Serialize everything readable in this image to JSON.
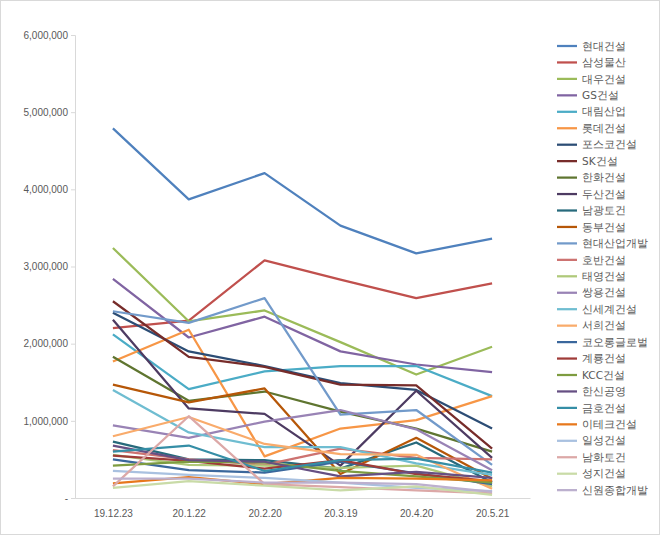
{
  "chart_data": {
    "type": "line",
    "categories": [
      "19.12.23",
      "20.1.22",
      "20.2.20",
      "20.3.19",
      "20.4.20",
      "20.5.21"
    ],
    "ylim": [
      0,
      6000000
    ],
    "yticks": [
      {
        "value": 0,
        "label": "-"
      },
      {
        "value": 1000000,
        "label": "1,000,000"
      },
      {
        "value": 2000000,
        "label": "2,000,000"
      },
      {
        "value": 3000000,
        "label": "3,000,000"
      },
      {
        "value": 4000000,
        "label": "4,000,000"
      },
      {
        "value": 5000000,
        "label": "5,000,000"
      },
      {
        "value": 6000000,
        "label": "6,000,000"
      }
    ],
    "grid": false,
    "legend": "right",
    "series": [
      {
        "name": "현대건설",
        "color": "#4f81bd",
        "values": [
          4790000,
          3870000,
          4210000,
          3530000,
          3170000,
          3360000
        ]
      },
      {
        "name": "삼성물산",
        "color": "#c0504d",
        "values": [
          2200000,
          2300000,
          3080000,
          2830000,
          2590000,
          2780000
        ]
      },
      {
        "name": "대우건설",
        "color": "#9bbb59",
        "values": [
          3240000,
          2290000,
          2430000,
          2020000,
          1600000,
          1960000
        ]
      },
      {
        "name": "GS건설",
        "color": "#8064a2",
        "values": [
          2840000,
          2080000,
          2350000,
          1900000,
          1730000,
          1630000
        ]
      },
      {
        "name": "대림산업",
        "color": "#4bacc6",
        "values": [
          2120000,
          1410000,
          1640000,
          1710000,
          1710000,
          1320000
        ]
      },
      {
        "name": "롯데건설",
        "color": "#f79646",
        "values": [
          1770000,
          2180000,
          540000,
          900000,
          1010000,
          1320000
        ]
      },
      {
        "name": "포스코건설",
        "color": "#2c4d75",
        "values": [
          2400000,
          1900000,
          1710000,
          1490000,
          1400000,
          900000
        ]
      },
      {
        "name": "SK건설",
        "color": "#772c2a",
        "values": [
          2550000,
          1830000,
          1700000,
          1470000,
          1460000,
          640000
        ]
      },
      {
        "name": "한화건설",
        "color": "#5f7530",
        "values": [
          1830000,
          1260000,
          1380000,
          1120000,
          900000,
          600000
        ]
      },
      {
        "name": "두산건설",
        "color": "#4d3b62",
        "values": [
          2310000,
          1160000,
          1090000,
          420000,
          1390000,
          520000
        ]
      },
      {
        "name": "남광토건",
        "color": "#276a7c",
        "values": [
          730000,
          500000,
          490000,
          380000,
          720000,
          200000
        ]
      },
      {
        "name": "동부건설",
        "color": "#b65708",
        "values": [
          1470000,
          1240000,
          1420000,
          310000,
          780000,
          250000
        ]
      },
      {
        "name": "현대산업개발",
        "color": "#729aca",
        "values": [
          2420000,
          2270000,
          2590000,
          1080000,
          1140000,
          430000
        ]
      },
      {
        "name": "호반건설",
        "color": "#cd7371",
        "values": [
          620000,
          500000,
          430000,
          640000,
          520000,
          500000
        ]
      },
      {
        "name": "태영건설",
        "color": "#afc97a",
        "values": [
          560000,
          430000,
          420000,
          390000,
          420000,
          150000
        ]
      },
      {
        "name": "쌍용건설",
        "color": "#9983b5",
        "values": [
          940000,
          780000,
          990000,
          1140000,
          890000,
          360000
        ]
      },
      {
        "name": "신세계건설",
        "color": "#6fbdd1",
        "values": [
          1400000,
          850000,
          660000,
          660000,
          450000,
          300000
        ]
      },
      {
        "name": "서희건설",
        "color": "#f9ab6b",
        "values": [
          800000,
          1050000,
          700000,
          570000,
          560000,
          120000
        ]
      },
      {
        "name": "코오롱글로벌",
        "color": "#3a679c",
        "values": [
          500000,
          360000,
          330000,
          470000,
          320000,
          180000
        ]
      },
      {
        "name": "계룡건설",
        "color": "#9f3b38",
        "values": [
          550000,
          480000,
          380000,
          490000,
          310000,
          220000
        ]
      },
      {
        "name": "KCC건설",
        "color": "#7e9c40",
        "values": [
          420000,
          470000,
          460000,
          350000,
          280000,
          200000
        ]
      },
      {
        "name": "한신공영",
        "color": "#664f83",
        "values": [
          680000,
          490000,
          470000,
          280000,
          340000,
          260000
        ]
      },
      {
        "name": "금호건설",
        "color": "#358ea6",
        "values": [
          600000,
          680000,
          350000,
          490000,
          510000,
          330000
        ]
      },
      {
        "name": "이테크건설",
        "color": "#e7781c",
        "values": [
          190000,
          270000,
          180000,
          260000,
          250000,
          230000
        ]
      },
      {
        "name": "일성건설",
        "color": "#a9c1e0",
        "values": [
          350000,
          300000,
          260000,
          200000,
          130000,
          90000
        ]
      },
      {
        "name": "남화토건",
        "color": "#dca8a7",
        "values": [
          150000,
          1060000,
          180000,
          140000,
          100000,
          60000
        ]
      },
      {
        "name": "성지건설",
        "color": "#c9dba7",
        "values": [
          130000,
          220000,
          160000,
          100000,
          150000,
          40000
        ]
      },
      {
        "name": "신원종합개발",
        "color": "#bcb0ce",
        "values": [
          250000,
          250000,
          200000,
          200000,
          180000,
          80000
        ]
      }
    ]
  }
}
